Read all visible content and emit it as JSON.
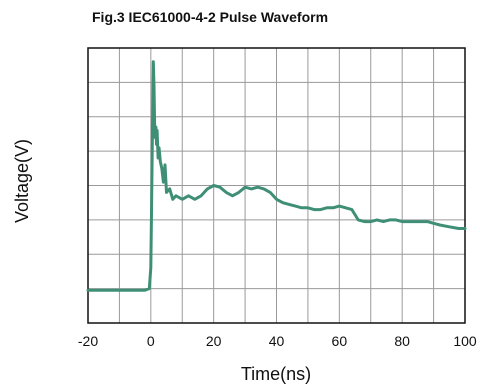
{
  "chart_data": {
    "type": "line",
    "title": "Fig.3   IEC61000-4-2 Pulse Waveform",
    "xlabel": "Time(ns)",
    "ylabel": "Voltage(V)",
    "xlim": [
      -20,
      100
    ],
    "ylim": [
      0,
      8
    ],
    "x_ticks": [
      -20,
      0,
      20,
      40,
      60,
      80,
      100
    ],
    "x_tick_labels": [
      "-20",
      "0",
      "20",
      "40",
      "60",
      "80",
      "100"
    ],
    "y_gridlines": 8,
    "grid": true,
    "y_tick_labels_shown": false,
    "line_color": "#3f8f76",
    "series": [
      {
        "x": [
          -20,
          -10,
          -2,
          -0.5,
          0,
          0.2,
          0.5,
          0.8,
          1.0,
          1.2,
          1.4,
          1.6,
          1.8,
          2.0,
          2.3,
          2.6,
          3.0,
          3.5,
          4.0,
          4.5,
          5.0,
          6.0,
          7.0,
          8.0,
          10,
          12,
          14,
          16,
          18,
          20,
          22,
          24,
          26,
          28,
          30,
          32,
          34,
          36,
          38,
          40,
          42,
          44,
          46,
          48,
          50,
          52,
          54,
          56,
          58,
          60,
          62,
          64,
          66,
          68,
          70,
          72,
          74,
          76,
          78,
          80,
          82,
          84,
          86,
          88,
          90,
          92,
          95,
          98,
          100
        ],
        "y": [
          0.95,
          0.95,
          0.95,
          1.0,
          1.6,
          3.2,
          5.5,
          7.6,
          6.9,
          5.8,
          5.4,
          5.7,
          5.2,
          5.6,
          4.8,
          5.1,
          4.7,
          4.5,
          4.1,
          4.6,
          3.8,
          3.9,
          3.6,
          3.7,
          3.6,
          3.7,
          3.6,
          3.7,
          3.9,
          4.0,
          3.95,
          3.8,
          3.7,
          3.8,
          3.95,
          3.9,
          3.95,
          3.9,
          3.8,
          3.6,
          3.5,
          3.45,
          3.4,
          3.35,
          3.35,
          3.3,
          3.3,
          3.35,
          3.35,
          3.4,
          3.35,
          3.3,
          3.0,
          2.95,
          2.95,
          3.0,
          2.95,
          3.0,
          3.0,
          2.95,
          2.95,
          2.95,
          2.95,
          2.95,
          2.9,
          2.85,
          2.8,
          2.75,
          2.75
        ]
      }
    ]
  }
}
